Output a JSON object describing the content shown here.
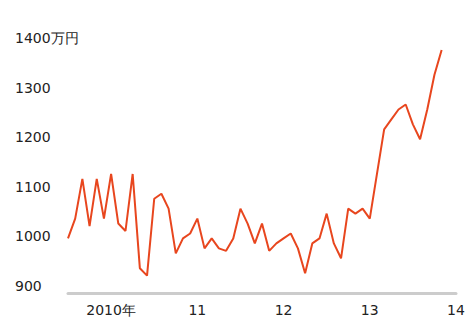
{
  "chart_data": {
    "type": "line",
    "categories": [
      null,
      null,
      null,
      null,
      null,
      null,
      "2010年",
      null,
      null,
      null,
      null,
      null,
      null,
      null,
      null,
      null,
      null,
      null,
      "11",
      null,
      null,
      null,
      null,
      null,
      null,
      null,
      null,
      null,
      null,
      null,
      "12",
      null,
      null,
      null,
      null,
      null,
      null,
      null,
      null,
      null,
      null,
      null,
      "13",
      null,
      null,
      null,
      null,
      null,
      null,
      null,
      null,
      null,
      null,
      null,
      "14"
    ],
    "values": [
      1010,
      1050,
      1130,
      1035,
      1130,
      1050,
      1140,
      1040,
      1025,
      1140,
      950,
      935,
      1090,
      1100,
      1070,
      980,
      1010,
      1020,
      1050,
      990,
      1010,
      990,
      985,
      1010,
      1070,
      1040,
      1000,
      1040,
      985,
      1000,
      1010,
      1020,
      990,
      940,
      1000,
      1010,
      1060,
      1000,
      970,
      1070,
      1060,
      1070,
      1050,
      1140,
      1230,
      1250,
      1270,
      1280,
      1240,
      1210,
      1270,
      1340,
      1390,
      null,
      null
    ],
    "color": "#e8461e",
    "ylim": [
      900,
      1400
    ],
    "yticks": [
      900,
      1000,
      1100,
      1200,
      1300,
      {
        "value": 1400,
        "label": "1400万円"
      }
    ],
    "grid": false
  }
}
